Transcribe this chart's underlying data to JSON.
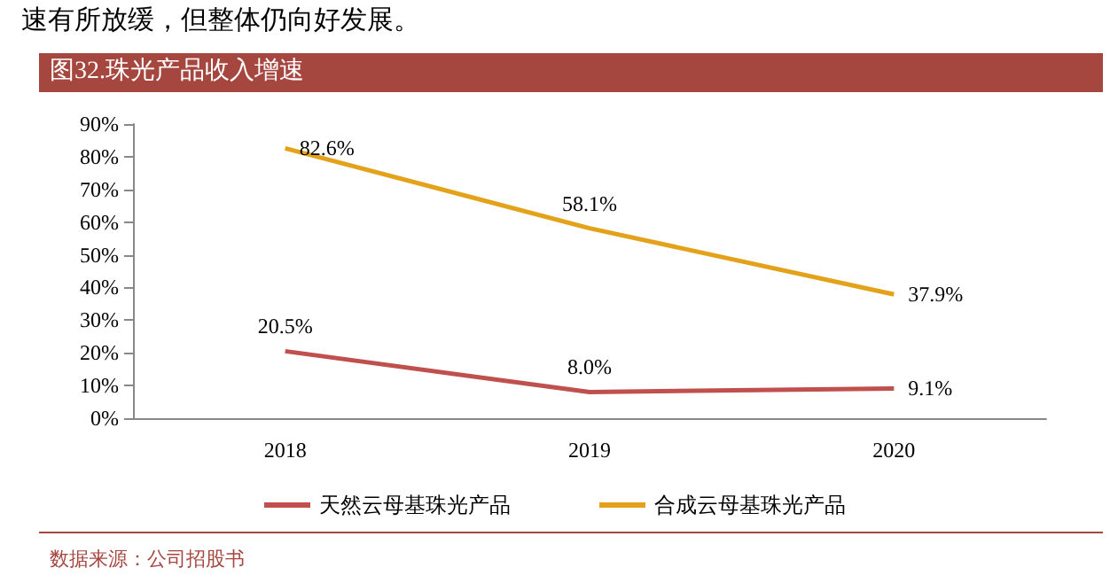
{
  "chart_data": {
    "type": "line",
    "title": "图32.珠光产品收入增速",
    "annotations": [
      "速有所放缓，但整体仍向好发展。",
      "数据来源：公司招股书"
    ],
    "categories": [
      "2018",
      "2019",
      "2020"
    ],
    "series": [
      {
        "name": "天然云母基珠光产品",
        "color": "#c0504d",
        "values": [
          20.5,
          8.0,
          9.1
        ],
        "value_labels": [
          "20.5%",
          "8.0%",
          "9.1%"
        ]
      },
      {
        "name": "合成云母基珠光产品",
        "color": "#e3a21a",
        "values": [
          82.6,
          58.1,
          37.9
        ],
        "value_labels": [
          "82.6%",
          "58.1%",
          "37.9%"
        ]
      }
    ],
    "ylim": [
      0,
      90
    ],
    "yticks": [
      {
        "value": 0,
        "label": "0%"
      },
      {
        "value": 10,
        "label": "10%"
      },
      {
        "value": 20,
        "label": "20%"
      },
      {
        "value": 30,
        "label": "30%"
      },
      {
        "value": 40,
        "label": "40%"
      },
      {
        "value": 50,
        "label": "50%"
      },
      {
        "value": 60,
        "label": "60%"
      },
      {
        "value": 70,
        "label": "70%"
      },
      {
        "value": 80,
        "label": "80%"
      },
      {
        "value": 90,
        "label": "90%"
      }
    ],
    "grid": false,
    "legend": "bottom",
    "marker": "none",
    "line_style": "solid"
  }
}
